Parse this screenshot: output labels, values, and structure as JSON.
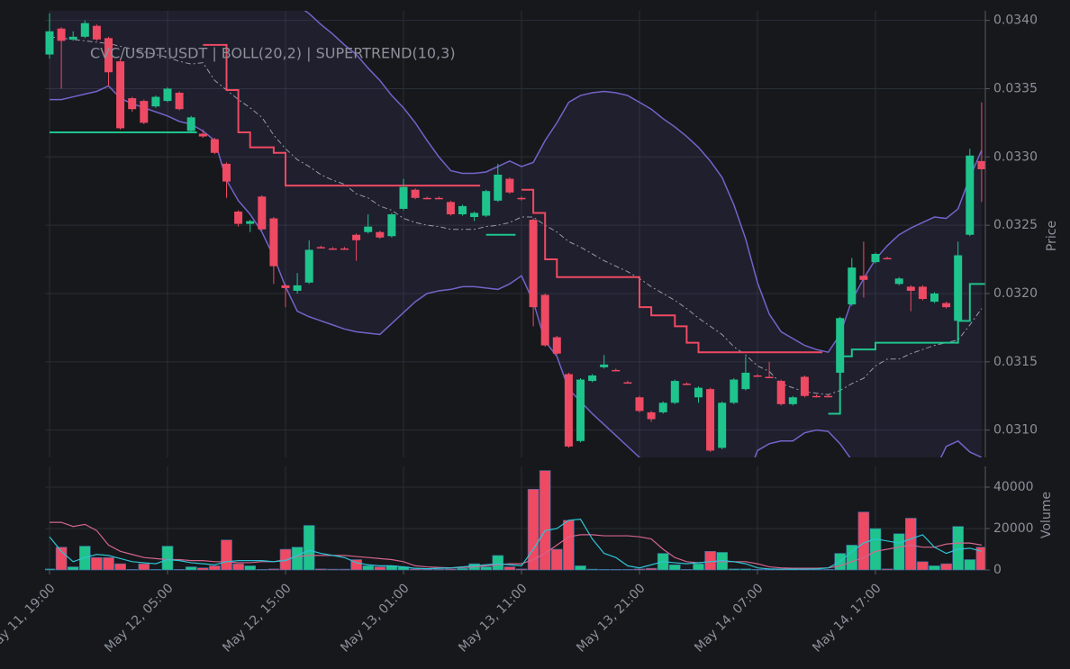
{
  "chart_data": {
    "type": "candlestick",
    "title": "CVC/USDT:USDT | BOLL(20,2) | SUPERTREND(10,3)",
    "ylabel": "Price",
    "volume_label": "Volume",
    "categories": [
      "May 11, 19:00",
      null,
      null,
      null,
      null,
      null,
      null,
      null,
      null,
      null,
      "May 12, 05:00",
      null,
      null,
      null,
      null,
      null,
      null,
      null,
      null,
      null,
      "May 12, 15:00",
      null,
      null,
      null,
      null,
      null,
      null,
      null,
      null,
      null,
      "May 13, 01:00",
      null,
      null,
      null,
      null,
      null,
      null,
      null,
      null,
      null,
      "May 13, 11:00",
      null,
      null,
      null,
      null,
      null,
      null,
      null,
      null,
      null,
      "May 13, 21:00",
      null,
      null,
      null,
      null,
      null,
      null,
      null,
      null,
      null,
      "May 14, 07:00",
      null,
      null,
      null,
      null,
      null,
      null,
      null,
      null,
      null,
      "May 14, 17:00",
      null,
      null,
      null,
      null,
      null,
      null,
      null,
      null,
      null
    ],
    "ohlc": [
      [
        0.03375,
        0.03405,
        0.03372,
        0.03392
      ],
      [
        0.03394,
        0.03395,
        0.0335,
        0.03385
      ],
      [
        0.03386,
        0.03392,
        0.03385,
        0.03388
      ],
      [
        0.03388,
        0.034,
        0.03387,
        0.03398
      ],
      [
        0.03396,
        0.03397,
        0.03385,
        0.03386
      ],
      [
        0.03387,
        0.03388,
        0.03352,
        0.03362
      ],
      [
        0.0337,
        0.03372,
        0.0332,
        0.03321
      ],
      [
        0.03343,
        0.03344,
        0.03333,
        0.03335
      ],
      [
        0.03341,
        0.03342,
        0.03324,
        0.03325
      ],
      [
        0.03337,
        0.03345,
        0.03336,
        0.03344
      ],
      [
        0.03341,
        0.03351,
        0.0334,
        0.0335
      ],
      [
        0.03347,
        0.03348,
        0.03334,
        0.03335
      ],
      [
        0.03319,
        0.0333,
        0.03318,
        0.03329
      ],
      [
        0.03317,
        0.0332,
        0.03314,
        0.03315
      ],
      [
        0.03313,
        0.03314,
        0.03302,
        0.03303
      ],
      [
        0.03295,
        0.03296,
        0.0327,
        0.03282
      ],
      [
        0.0326,
        0.03261,
        0.03249,
        0.03251
      ],
      [
        0.03251,
        0.03254,
        0.03245,
        0.03253
      ],
      [
        0.03271,
        0.03272,
        0.03246,
        0.03247
      ],
      [
        0.03255,
        0.03256,
        0.03207,
        0.0322
      ],
      [
        0.03206,
        0.03207,
        0.0319,
        0.03204
      ],
      [
        0.03202,
        0.03215,
        0.032,
        0.03206
      ],
      [
        0.03208,
        0.03239,
        0.03207,
        0.03232
      ],
      [
        0.03234,
        0.03235,
        0.03233,
        0.03233
      ],
      [
        0.03233,
        0.03234,
        0.03232,
        0.03233
      ],
      [
        0.03233,
        0.03234,
        0.03232,
        0.03233
      ],
      [
        0.03243,
        0.03244,
        0.03224,
        0.03239
      ],
      [
        0.03245,
        0.03258,
        0.03244,
        0.03249
      ],
      [
        0.03245,
        0.03246,
        0.0324,
        0.03241
      ],
      [
        0.03242,
        0.03259,
        0.03241,
        0.03258
      ],
      [
        0.03262,
        0.03284,
        0.03261,
        0.03278
      ],
      [
        0.03276,
        0.03277,
        0.03269,
        0.0327
      ],
      [
        0.0327,
        0.03271,
        0.03269,
        0.0327
      ],
      [
        0.0327,
        0.03271,
        0.03269,
        0.0327
      ],
      [
        0.03267,
        0.03268,
        0.03257,
        0.03258
      ],
      [
        0.03258,
        0.03265,
        0.03257,
        0.03264
      ],
      [
        0.03256,
        0.0326,
        0.03253,
        0.03259
      ],
      [
        0.03257,
        0.03276,
        0.03256,
        0.03275
      ],
      [
        0.03268,
        0.03295,
        0.03267,
        0.03287
      ],
      [
        0.03284,
        0.03285,
        0.03273,
        0.03274
      ],
      [
        0.0327,
        0.03271,
        0.03268,
        0.03269
      ],
      [
        0.03254,
        0.03255,
        0.03176,
        0.0319
      ],
      [
        0.03199,
        0.032,
        0.03161,
        0.03162
      ],
      [
        0.03168,
        0.03169,
        0.03155,
        0.03156
      ],
      [
        0.03141,
        0.03142,
        0.03087,
        0.03088
      ],
      [
        0.03092,
        0.03138,
        0.03091,
        0.03137
      ],
      [
        0.03136,
        0.03141,
        0.03135,
        0.0314
      ],
      [
        0.03146,
        0.03155,
        0.03145,
        0.03148
      ],
      [
        0.03144,
        0.03145,
        0.03143,
        0.03144
      ],
      [
        0.03135,
        0.03136,
        0.03134,
        0.03135
      ],
      [
        0.03124,
        0.03125,
        0.03113,
        0.03114
      ],
      [
        0.03113,
        0.03114,
        0.03106,
        0.03108
      ],
      [
        0.03113,
        0.03121,
        0.03112,
        0.0312
      ],
      [
        0.0312,
        0.03137,
        0.03119,
        0.03136
      ],
      [
        0.03134,
        0.03135,
        0.03133,
        0.03134
      ],
      [
        0.03124,
        0.03132,
        0.0312,
        0.03131
      ],
      [
        0.0313,
        0.03131,
        0.03084,
        0.03085
      ],
      [
        0.03087,
        0.03121,
        0.03086,
        0.0312
      ],
      [
        0.0312,
        0.03138,
        0.03119,
        0.03137
      ],
      [
        0.0313,
        0.03154,
        0.03129,
        0.03142
      ],
      [
        0.0314,
        0.03141,
        0.03139,
        0.0314
      ],
      [
        0.03139,
        0.0315,
        0.03138,
        0.03139
      ],
      [
        0.03136,
        0.03137,
        0.03118,
        0.03119
      ],
      [
        0.03119,
        0.03125,
        0.03118,
        0.03124
      ],
      [
        0.03139,
        0.0314,
        0.03124,
        0.03125
      ],
      [
        0.03125,
        0.03126,
        0.03124,
        0.03125
      ],
      [
        0.03125,
        0.03126,
        0.03124,
        0.03125
      ],
      [
        0.03142,
        0.03183,
        0.03141,
        0.03182
      ],
      [
        0.03192,
        0.03226,
        0.03191,
        0.03219
      ],
      [
        0.03213,
        0.03238,
        0.03197,
        0.0321
      ],
      [
        0.03223,
        0.0323,
        0.03222,
        0.03229
      ],
      [
        0.03226,
        0.03227,
        0.03225,
        0.03226
      ],
      [
        0.03207,
        0.03212,
        0.03206,
        0.03211
      ],
      [
        0.03205,
        0.03206,
        0.03187,
        0.03202
      ],
      [
        0.03205,
        0.03206,
        0.03195,
        0.03196
      ],
      [
        0.03194,
        0.03201,
        0.03193,
        0.032
      ],
      [
        0.03193,
        0.03194,
        0.03189,
        0.0319
      ],
      [
        0.0318,
        0.03238,
        0.03179,
        0.03228
      ],
      [
        0.03243,
        0.03306,
        0.03242,
        0.03301
      ],
      [
        0.03297,
        0.0334,
        0.03267,
        0.03291
      ]
    ],
    "volume": [
      500,
      11000,
      1500,
      11500,
      6000,
      6000,
      3000,
      300,
      3000,
      300,
      11500,
      300,
      1500,
      1000,
      2000,
      14500,
      3000,
      2000,
      300,
      500,
      10000,
      11000,
      21500,
      500,
      400,
      400,
      5000,
      2000,
      1500,
      2000,
      1500,
      500,
      400,
      400,
      500,
      800,
      3000,
      1500,
      7000,
      1500,
      500,
      39000,
      48000,
      10000,
      24000,
      2000,
      400,
      300,
      300,
      300,
      500,
      800,
      8000,
      2500,
      300,
      3000,
      9000,
      8500,
      500,
      500,
      300,
      300,
      500,
      400,
      500,
      300,
      300,
      8000,
      12000,
      28000,
      20000,
      500,
      17500,
      25000,
      4000,
      2000,
      3000,
      21000,
      5000,
      11000
    ],
    "boll_upper": [
      0.0343,
      0.03432,
      0.03434,
      0.03436,
      0.03438,
      0.0344,
      0.03445,
      0.03448,
      0.0345,
      0.03452,
      0.03454,
      0.03455,
      0.03455,
      0.03453,
      0.0345,
      0.03445,
      0.0344,
      0.03435,
      0.03428,
      0.03422,
      0.03416,
      0.03411,
      0.03405,
      0.03397,
      0.0339,
      0.03382,
      0.03375,
      0.03365,
      0.03356,
      0.03345,
      0.03336,
      0.03325,
      0.03312,
      0.033,
      0.0329,
      0.03288,
      0.03288,
      0.03289,
      0.03293,
      0.03297,
      0.03293,
      0.03296,
      0.03312,
      0.03325,
      0.0334,
      0.03345,
      0.03347,
      0.03348,
      0.03347,
      0.03345,
      0.0334,
      0.03335,
      0.03328,
      0.03322,
      0.03315,
      0.03307,
      0.03297,
      0.03285,
      0.03265,
      0.0324,
      0.03208,
      0.03185,
      0.03172,
      0.03167,
      0.03162,
      0.03159,
      0.03157,
      0.0317,
      0.03195,
      0.03211,
      0.03225,
      0.03235,
      0.03243,
      0.03248,
      0.03252,
      0.03256,
      0.03255,
      0.03262,
      0.03285,
      0.03305
    ],
    "boll_middle": [
      0.03388,
      0.03387,
      0.03386,
      0.03385,
      0.03384,
      0.03383,
      0.03381,
      0.03379,
      0.03377,
      0.03375,
      0.03373,
      0.0337,
      0.03368,
      0.03369,
      0.03356,
      0.03349,
      0.03342,
      0.03336,
      0.03329,
      0.03316,
      0.03306,
      0.03298,
      0.03293,
      0.03287,
      0.03283,
      0.0328,
      0.03273,
      0.0327,
      0.03264,
      0.03261,
      0.03255,
      0.03252,
      0.0325,
      0.03249,
      0.03247,
      0.03247,
      0.03247,
      0.03249,
      0.0325,
      0.03252,
      0.03256,
      0.03256,
      0.0325,
      0.03245,
      0.03238,
      0.03234,
      0.03229,
      0.03224,
      0.0322,
      0.03216,
      0.03211,
      0.03205,
      0.032,
      0.03195,
      0.03189,
      0.03182,
      0.03176,
      0.0317,
      0.03161,
      0.03155,
      0.03147,
      0.03143,
      0.03134,
      0.03131,
      0.03128,
      0.03127,
      0.03126,
      0.03129,
      0.03134,
      0.03138,
      0.03147,
      0.03152,
      0.03152,
      0.03156,
      0.03159,
      0.03162,
      0.03164,
      0.03166,
      0.03177,
      0.03189
    ],
    "boll_lower": [
      0.03342,
      0.03342,
      0.03344,
      0.03346,
      0.03348,
      0.03352,
      0.03343,
      0.03339,
      0.03336,
      0.03333,
      0.0333,
      0.03326,
      0.03324,
      0.03319,
      0.03312,
      0.03283,
      0.03268,
      0.03258,
      0.03245,
      0.03227,
      0.03205,
      0.03187,
      0.03183,
      0.0318,
      0.03177,
      0.03174,
      0.03172,
      0.03171,
      0.0317,
      0.03178,
      0.03186,
      0.03194,
      0.032,
      0.03202,
      0.03203,
      0.03205,
      0.03205,
      0.03204,
      0.03203,
      0.03207,
      0.03213,
      0.03194,
      0.03165,
      0.03154,
      0.0313,
      0.03121,
      0.03112,
      0.03104,
      0.03096,
      0.03088,
      0.0308,
      0.03073,
      0.03068,
      0.03065,
      0.03063,
      0.0306,
      0.03058,
      0.03056,
      0.03055,
      0.03062,
      0.03085,
      0.0309,
      0.03092,
      0.03092,
      0.03098,
      0.031,
      0.03099,
      0.0309,
      0.03078,
      0.03072,
      0.03068,
      0.03066,
      0.03065,
      0.03066,
      0.03068,
      0.0307,
      0.03088,
      0.03092,
      0.03084,
      0.0308
    ],
    "supertrend_up": [
      0.03318,
      0.03318,
      0.03318,
      0.03318,
      0.03318,
      0.03318,
      0.03318,
      0.03318,
      0.03318,
      0.03318,
      0.03318,
      0.03318,
      0.03318,
      null,
      null,
      null,
      null,
      null,
      null,
      null,
      null,
      null,
      null,
      null,
      null,
      null,
      null,
      null,
      null,
      null,
      null,
      null,
      null,
      null,
      null,
      null,
      null,
      0.03243,
      0.03243,
      0.03243,
      null,
      null,
      null,
      null,
      null,
      null,
      null,
      null,
      null,
      null,
      null,
      null,
      null,
      null,
      null,
      null,
      null,
      null,
      null,
      null,
      null,
      null,
      null,
      null,
      null,
      null,
      0.03112,
      0.03154,
      0.03159,
      0.03159,
      0.03164,
      0.03164,
      0.03164,
      0.03164,
      0.03164,
      0.03164,
      0.03164,
      0.0318,
      0.03207,
      0.03207
    ],
    "supertrend_down": [
      null,
      null,
      null,
      null,
      null,
      null,
      null,
      null,
      null,
      null,
      null,
      null,
      null,
      0.03382,
      0.03382,
      0.03349,
      0.03318,
      0.03307,
      0.03307,
      0.03303,
      0.03279,
      0.03279,
      0.03279,
      0.03279,
      0.03279,
      0.03279,
      0.03279,
      0.03279,
      0.03279,
      0.03279,
      0.03279,
      0.03279,
      0.03279,
      0.03279,
      0.03279,
      0.03279,
      0.03279,
      null,
      null,
      null,
      0.03276,
      0.03259,
      0.03225,
      0.03212,
      0.03212,
      0.03212,
      0.03212,
      0.03212,
      0.03212,
      0.03212,
      0.0319,
      0.03184,
      0.03184,
      0.03176,
      0.03164,
      0.03157,
      0.03157,
      0.03157,
      0.03157,
      0.03157,
      0.03157,
      0.03157,
      0.03157,
      0.03157,
      0.03157,
      0.03157,
      null,
      null,
      null,
      null,
      null,
      null,
      null,
      null,
      null,
      null,
      null,
      null,
      null,
      null
    ],
    "volume_ma_fast": [
      16000,
      9000,
      4000,
      6000,
      7500,
      7000,
      5500,
      4000,
      3500,
      3000,
      5000,
      4500,
      3500,
      3000,
      2500,
      4000,
      4500,
      4500,
      4500,
      4000,
      4500,
      7000,
      9500,
      8000,
      7000,
      6000,
      3500,
      2500,
      2000,
      2000,
      1500,
      800,
      600,
      800,
      1000,
      1500,
      2000,
      2500,
      3000,
      2500,
      2000,
      10000,
      19000,
      20000,
      24000,
      24500,
      15000,
      8000,
      6000,
      2000,
      1000,
      2500,
      4000,
      3500,
      3000,
      3500,
      4000,
      4500,
      4000,
      3000,
      1000,
      500,
      400,
      400,
      400,
      500,
      1000,
      4000,
      9000,
      13000,
      15000,
      14000,
      13000,
      15000,
      17000,
      11000,
      8000,
      10000,
      10500,
      9000
    ],
    "volume_ma_slow": [
      23000,
      23000,
      21000,
      22000,
      19000,
      12000,
      9000,
      7500,
      6000,
      5500,
      5000,
      5000,
      4500,
      4500,
      4000,
      4000,
      3500,
      3500,
      4000,
      4000,
      5000,
      6500,
      7000,
      7000,
      7000,
      7000,
      6500,
      6000,
      5500,
      5000,
      4000,
      2000,
      1500,
      1200,
      1000,
      1200,
      1500,
      2000,
      2500,
      3000,
      3000,
      5000,
      8000,
      12000,
      16000,
      17000,
      17000,
      16500,
      16500,
      16500,
      16000,
      15000,
      10000,
      6000,
      4000,
      3500,
      4000,
      4000,
      4000,
      4000,
      3000,
      1500,
      1000,
      800,
      800,
      800,
      1000,
      2000,
      4000,
      6000,
      9000,
      10000,
      11000,
      12000,
      11000,
      11000,
      12500,
      13000,
      13000,
      12000
    ],
    "up_color": "#1fc48d",
    "down_color": "#ee4a63",
    "band_color": "#7463c9",
    "middle_color": "#9a9aa6",
    "fast_ma_color": "#2cc4d4",
    "slow_ma_color": "#d3658c",
    "ylim": [
      0.0308,
      0.03407
    ],
    "yticks": [
      {
        "value": 0.031,
        "label": "0.0310"
      },
      0.0315,
      {
        "value": 0.032,
        "label": "0.0320"
      },
      0.0325,
      {
        "value": 0.033,
        "label": "0.0330"
      },
      0.0335,
      {
        "value": 0.034,
        "label": "0.0340"
      }
    ],
    "volume_ylim": [
      0,
      50000
    ],
    "volume_yticks": [
      0,
      20000,
      40000
    ],
    "grid": true
  }
}
